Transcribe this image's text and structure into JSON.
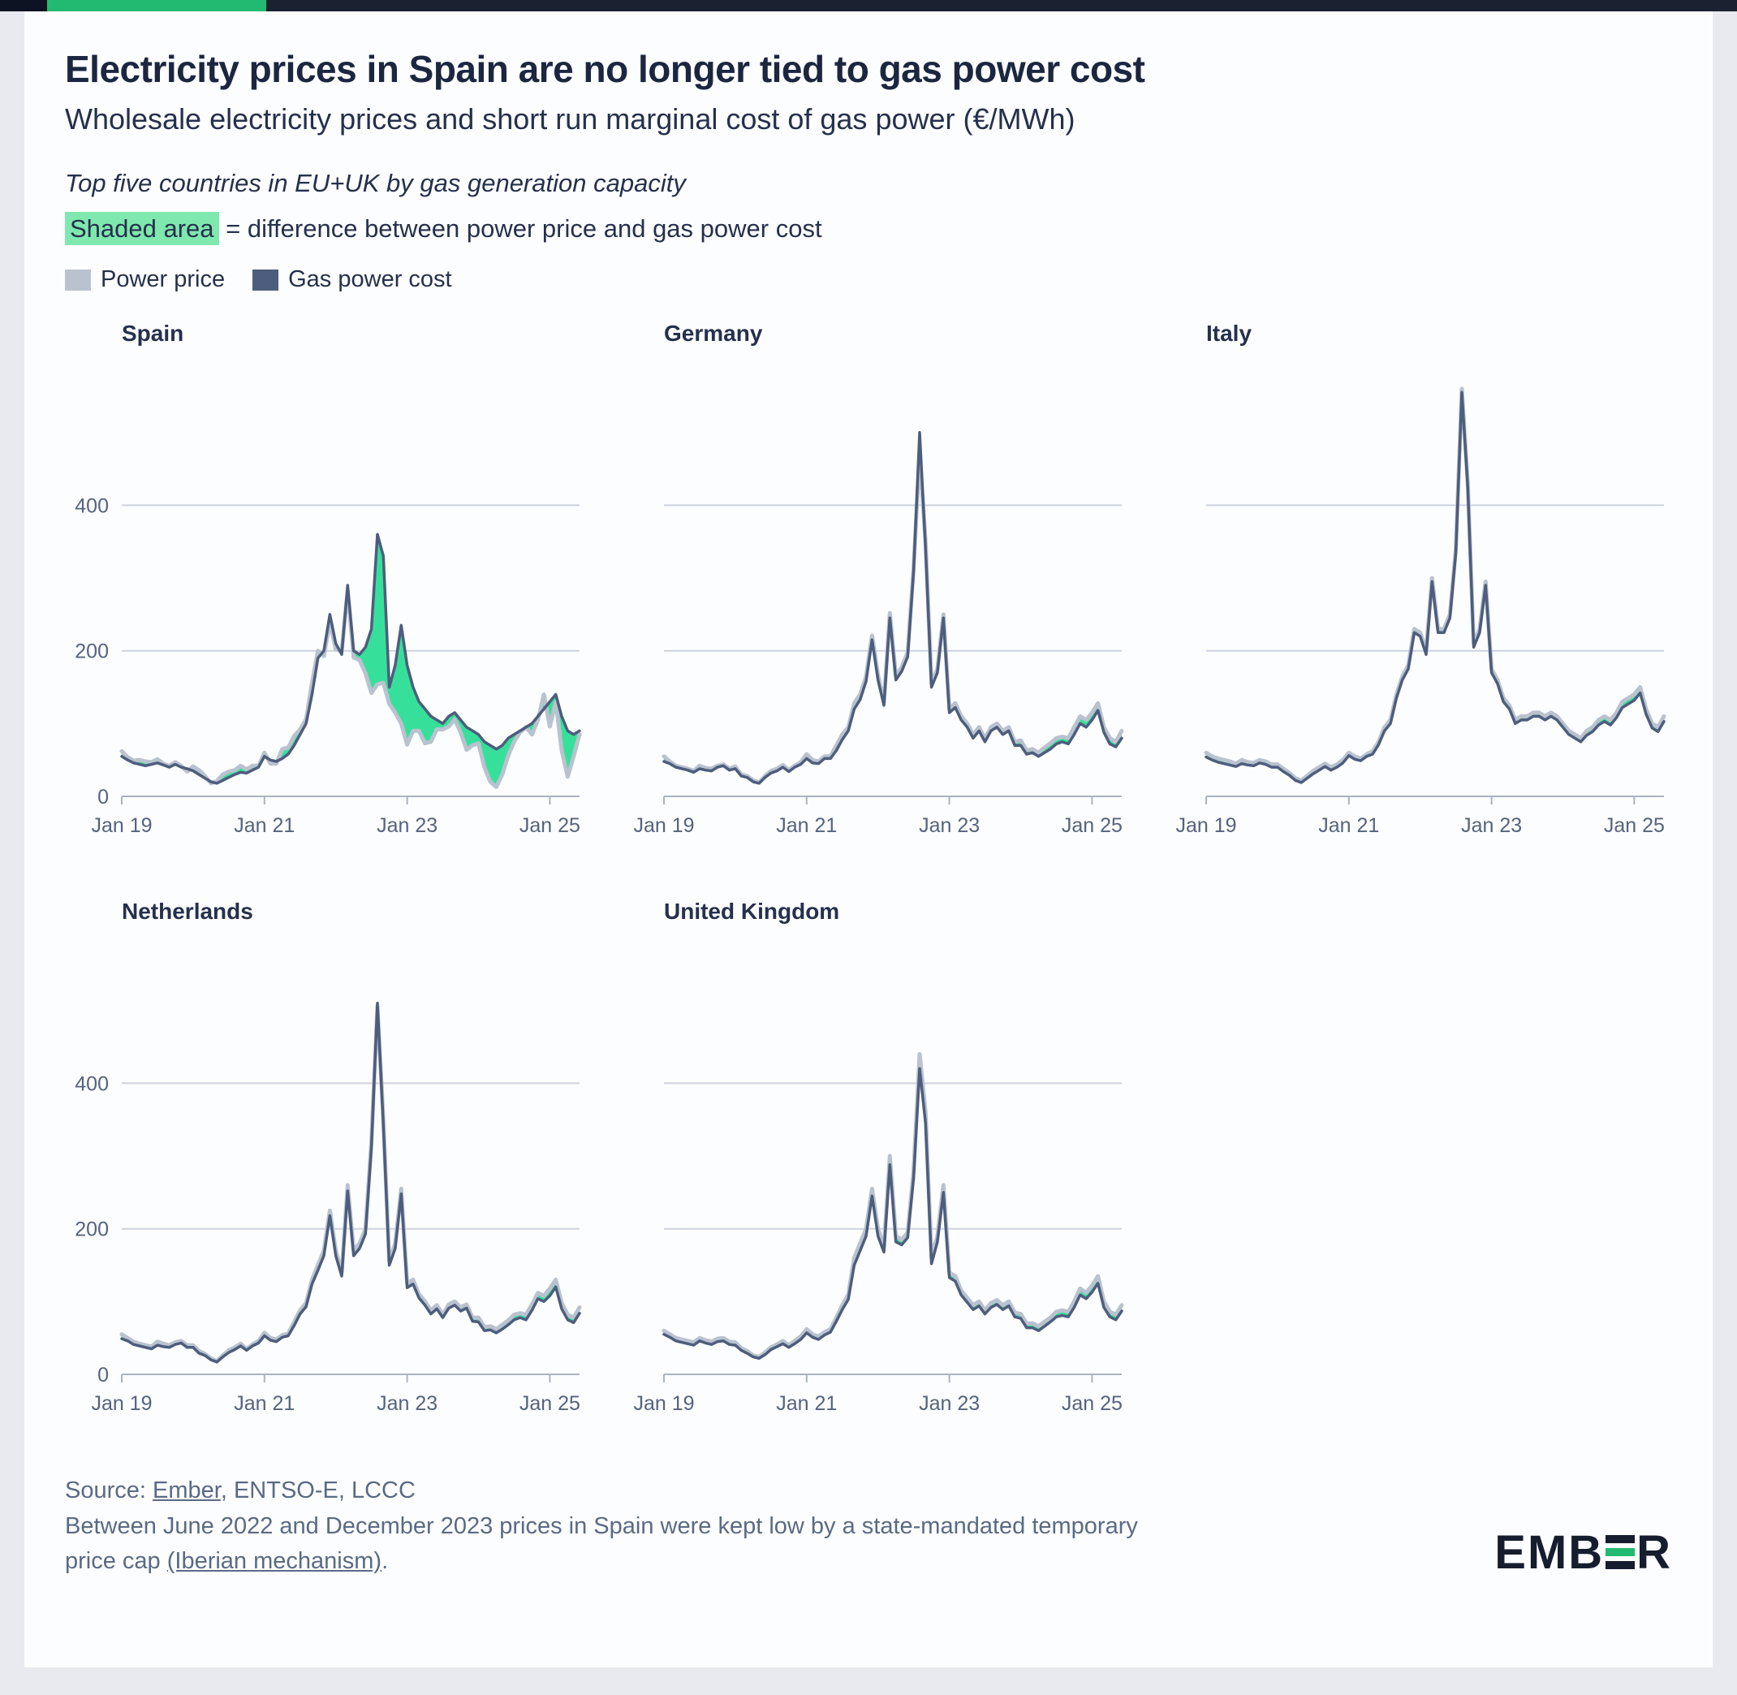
{
  "header": {
    "title": "Electricity prices in Spain are no longer tied to gas power cost",
    "subtitle": "Wholesale electricity prices and short run marginal cost of gas power (€/MWh)",
    "note_italic": "Top five countries in EU+UK by gas generation capacity",
    "shaded_label": "Shaded area",
    "shaded_rest": " = difference between power price and gas power cost",
    "legend": [
      {
        "label": "Power price",
        "color": "#b9c2cf"
      },
      {
        "label": "Gas power cost",
        "color": "#4d5d7d"
      }
    ]
  },
  "footer": {
    "source_label": "Source: ",
    "source_link": "Ember",
    "source_rest": ", ENTSO-E, LCCC",
    "note_text": "Between June 2022 and December 2023 prices in Spain were kept low by a state-mandated temporary price cap ",
    "note_link": "(Iberian mechanism)",
    "note_suffix": ".",
    "logo_left": "EMB",
    "logo_right": "R"
  },
  "chart_config": {
    "type": "line",
    "frequency": "monthly",
    "x_start": "Jan 2019",
    "x_end": "Jun 2025",
    "x_tick_indices": [
      0,
      24,
      48,
      72
    ],
    "x_tick_labels": [
      "Jan 19",
      "Jan 21",
      "Jan 23",
      "Jan 25"
    ],
    "y_ticks": [
      0,
      200,
      400
    ],
    "ylim": [
      0,
      580
    ],
    "grid": "horizontal",
    "legend_position": "top-left",
    "series_colors": {
      "power": "#b9c2cf",
      "gas": "#4d5d7d"
    },
    "diff_fill": "#36e09a",
    "accent_green": "#22ba70"
  },
  "chart_data": [
    {
      "title": "Spain",
      "show_y_axis_labels": true,
      "power": [
        62,
        54,
        49,
        50,
        48,
        47,
        51,
        45,
        42,
        47,
        42,
        34,
        41,
        36,
        28,
        18,
        21,
        30,
        34,
        36,
        42,
        37,
        42,
        42,
        60,
        45,
        45,
        65,
        67,
        83,
        92,
        106,
        156,
        200,
        193,
        239,
        202,
        200,
        283,
        191,
        187,
        169,
        142,
        154,
        156,
        127,
        115,
        100,
        71,
        90,
        90,
        73,
        75,
        92,
        92,
        96,
        106,
        88,
        64,
        70,
        73,
        40,
        20,
        13,
        30,
        56,
        75,
        88,
        95,
        85,
        105,
        140,
        96,
        130,
        63,
        27,
        55,
        85
      ],
      "gas": [
        55,
        50,
        46,
        44,
        42,
        44,
        46,
        43,
        40,
        44,
        40,
        38,
        35,
        30,
        25,
        20,
        18,
        22,
        26,
        30,
        33,
        32,
        36,
        40,
        55,
        50,
        48,
        52,
        58,
        70,
        85,
        100,
        140,
        190,
        200,
        250,
        210,
        195,
        290,
        200,
        195,
        205,
        230,
        360,
        330,
        150,
        180,
        235,
        180,
        150,
        130,
        120,
        110,
        105,
        100,
        110,
        115,
        105,
        95,
        90,
        85,
        75,
        70,
        65,
        70,
        80,
        85,
        90,
        95,
        100,
        110,
        120,
        130,
        140,
        110,
        90,
        85,
        90
      ]
    },
    {
      "title": "Germany",
      "show_y_axis_labels": false,
      "power": [
        55,
        48,
        42,
        40,
        38,
        35,
        42,
        39,
        38,
        42,
        44,
        38,
        41,
        30,
        28,
        22,
        19,
        28,
        35,
        38,
        43,
        36,
        42,
        47,
        58,
        50,
        48,
        55,
        55,
        70,
        85,
        95,
        128,
        140,
        165,
        221,
        167,
        129,
        252,
        165,
        178,
        198,
        315,
        470,
        350,
        155,
        175,
        250,
        120,
        128,
        110,
        100,
        85,
        95,
        80,
        95,
        100,
        90,
        95,
        75,
        77,
        63,
        65,
        60,
        67,
        73,
        80,
        82,
        80,
        95,
        110,
        105,
        115,
        128,
        95,
        80,
        75,
        90
      ],
      "gas": [
        48,
        45,
        40,
        38,
        36,
        33,
        38,
        36,
        35,
        40,
        42,
        36,
        38,
        28,
        26,
        20,
        18,
        26,
        32,
        35,
        40,
        34,
        40,
        44,
        52,
        46,
        45,
        52,
        52,
        63,
        78,
        90,
        120,
        133,
        158,
        215,
        160,
        125,
        245,
        160,
        172,
        192,
        310,
        500,
        340,
        150,
        170,
        245,
        115,
        122,
        105,
        95,
        80,
        90,
        75,
        90,
        95,
        85,
        90,
        70,
        70,
        58,
        60,
        55,
        60,
        65,
        72,
        75,
        72,
        85,
        100,
        95,
        105,
        118,
        88,
        72,
        68,
        80
      ]
    },
    {
      "title": "Italy",
      "show_y_axis_labels": false,
      "power": [
        60,
        55,
        52,
        50,
        48,
        45,
        50,
        47,
        46,
        50,
        48,
        44,
        44,
        38,
        32,
        25,
        22,
        28,
        35,
        40,
        45,
        40,
        44,
        50,
        60,
        55,
        52,
        58,
        62,
        75,
        95,
        105,
        140,
        165,
        180,
        230,
        225,
        200,
        300,
        230,
        230,
        250,
        340,
        560,
        430,
        210,
        230,
        295,
        175,
        160,
        135,
        125,
        105,
        110,
        110,
        115,
        115,
        110,
        115,
        110,
        100,
        90,
        85,
        80,
        90,
        95,
        105,
        110,
        105,
        115,
        130,
        135,
        140,
        150,
        120,
        100,
        95,
        110
      ],
      "gas": [
        54,
        50,
        47,
        45,
        43,
        41,
        45,
        43,
        42,
        46,
        44,
        40,
        40,
        34,
        29,
        22,
        19,
        25,
        31,
        36,
        41,
        36,
        40,
        46,
        56,
        51,
        49,
        55,
        58,
        71,
        90,
        100,
        135,
        160,
        175,
        225,
        220,
        195,
        295,
        225,
        225,
        245,
        335,
        555,
        425,
        205,
        225,
        290,
        170,
        155,
        130,
        120,
        100,
        105,
        105,
        110,
        110,
        105,
        110,
        105,
        95,
        85,
        80,
        75,
        84,
        89,
        98,
        103,
        98,
        108,
        122,
        127,
        132,
        142,
        113,
        94,
        89,
        103
      ]
    },
    {
      "title": "Netherlands",
      "show_y_axis_labels": true,
      "power": [
        55,
        50,
        45,
        42,
        40,
        38,
        45,
        42,
        40,
        44,
        46,
        40,
        40,
        32,
        28,
        22,
        18,
        26,
        33,
        37,
        42,
        35,
        41,
        46,
        57,
        50,
        48,
        54,
        56,
        72,
        88,
        98,
        130,
        150,
        170,
        225,
        170,
        140,
        260,
        170,
        180,
        200,
        320,
        505,
        350,
        155,
        180,
        255,
        125,
        130,
        110,
        100,
        88,
        95,
        82,
        96,
        100,
        92,
        96,
        78,
        78,
        65,
        66,
        62,
        68,
        74,
        82,
        84,
        82,
        96,
        112,
        108,
        118,
        130,
        98,
        82,
        78,
        92
      ],
      "gas": [
        49,
        46,
        41,
        39,
        37,
        35,
        40,
        38,
        37,
        41,
        43,
        37,
        37,
        29,
        26,
        20,
        17,
        24,
        30,
        34,
        39,
        33,
        39,
        43,
        53,
        47,
        45,
        51,
        53,
        67,
        83,
        93,
        124,
        143,
        163,
        218,
        163,
        135,
        252,
        163,
        173,
        193,
        312,
        510,
        342,
        150,
        173,
        248,
        119,
        124,
        105,
        95,
        83,
        90,
        78,
        91,
        95,
        87,
        91,
        73,
        72,
        60,
        61,
        57,
        62,
        68,
        75,
        78,
        75,
        88,
        104,
        100,
        108,
        120,
        90,
        75,
        71,
        84
      ]
    },
    {
      "title": "United Kingdom",
      "show_y_axis_labels": false,
      "power": [
        60,
        55,
        50,
        48,
        46,
        44,
        50,
        47,
        45,
        49,
        50,
        45,
        44,
        36,
        32,
        26,
        24,
        30,
        37,
        41,
        46,
        40,
        46,
        52,
        62,
        55,
        52,
        58,
        62,
        78,
        95,
        110,
        160,
        180,
        200,
        255,
        200,
        175,
        300,
        190,
        185,
        195,
        280,
        440,
        360,
        160,
        190,
        260,
        140,
        135,
        115,
        105,
        95,
        100,
        88,
        98,
        102,
        95,
        100,
        85,
        83,
        70,
        70,
        66,
        72,
        78,
        86,
        88,
        86,
        100,
        118,
        112,
        122,
        135,
        100,
        86,
        82,
        95
      ],
      "gas": [
        55,
        51,
        46,
        44,
        42,
        40,
        46,
        43,
        41,
        45,
        46,
        41,
        40,
        33,
        29,
        24,
        22,
        27,
        34,
        38,
        42,
        37,
        42,
        48,
        57,
        51,
        48,
        54,
        58,
        73,
        89,
        103,
        150,
        170,
        190,
        245,
        190,
        168,
        288,
        182,
        178,
        188,
        270,
        420,
        345,
        152,
        182,
        250,
        133,
        128,
        109,
        99,
        89,
        94,
        83,
        92,
        96,
        89,
        94,
        79,
        77,
        64,
        64,
        60,
        66,
        72,
        79,
        81,
        79,
        92,
        109,
        104,
        113,
        125,
        92,
        79,
        75,
        87
      ]
    }
  ]
}
